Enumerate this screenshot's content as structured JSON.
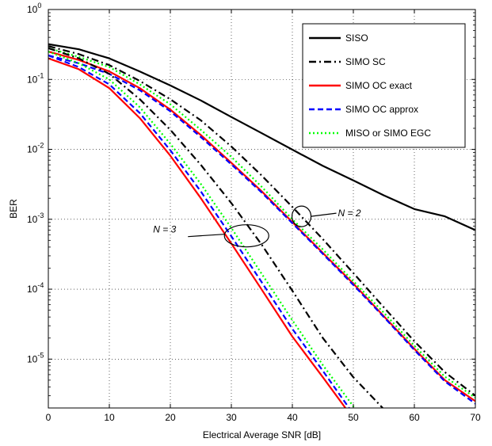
{
  "chart_data": {
    "type": "line",
    "xlabel": "Electrical Average SNR [dB]",
    "ylabel": "BER",
    "xlim": [
      0,
      70
    ],
    "ylim": [
      2e-06,
      1
    ],
    "yscale": "log",
    "grid": true,
    "legend_position": "top-right",
    "x_ticks": [
      "0",
      "10",
      "20",
      "30",
      "40",
      "50",
      "60",
      "70"
    ],
    "y_ticks": [
      {
        "base": "10",
        "exp": "0"
      },
      {
        "base": "10",
        "exp": "-1"
      },
      {
        "base": "10",
        "exp": "-2"
      },
      {
        "base": "10",
        "exp": "-3"
      },
      {
        "base": "10",
        "exp": "-4"
      },
      {
        "base": "10",
        "exp": "-5"
      }
    ],
    "legend": [
      {
        "label": "SISO",
        "color": "#000000",
        "style": "solid"
      },
      {
        "label": "SIMO SC",
        "color": "#000000",
        "style": "dashdot"
      },
      {
        "label": "SIMO OC exact",
        "color": "#ff0000",
        "style": "solid"
      },
      {
        "label": "SIMO OC approx",
        "color": "#0000ff",
        "style": "dashed"
      },
      {
        "label": "MISO or SIMO EGC",
        "color": "#00ff00",
        "style": "dotted"
      }
    ],
    "series": [
      {
        "name": "SISO",
        "color": "#000000",
        "style": "solid",
        "x": [
          0,
          5,
          10,
          15,
          20,
          25,
          30,
          35,
          40,
          45,
          50,
          55,
          60,
          65,
          70
        ],
        "y": [
          0.32,
          0.27,
          0.2,
          0.13,
          0.082,
          0.05,
          0.029,
          0.017,
          0.0099,
          0.0058,
          0.0036,
          0.0022,
          0.0014,
          0.0011,
          0.0007
        ]
      },
      {
        "name": "SIMO SC",
        "group": "N = 2",
        "color": "#000000",
        "style": "dashdot",
        "x": [
          0,
          5,
          10,
          15,
          20,
          25,
          30,
          35,
          40,
          45,
          50,
          55,
          60,
          65,
          70
        ],
        "y": [
          0.3,
          0.23,
          0.16,
          0.095,
          0.052,
          0.026,
          0.011,
          0.0042,
          0.0015,
          0.00052,
          0.00017,
          5.5e-05,
          1.8e-05,
          6.5e-06,
          3e-06
        ]
      },
      {
        "name": "SIMO OC exact",
        "group": "N = 2",
        "color": "#ff0000",
        "style": "solid",
        "x": [
          0,
          5,
          10,
          15,
          20,
          25,
          30,
          35,
          40,
          45,
          50,
          55,
          60,
          65,
          70
        ],
        "y": [
          0.25,
          0.19,
          0.13,
          0.075,
          0.037,
          0.016,
          0.0064,
          0.0025,
          0.00091,
          0.00033,
          0.00012,
          4.1e-05,
          1.4e-05,
          5e-06,
          2.5e-06
        ]
      },
      {
        "name": "SIMO OC approx",
        "group": "N = 2",
        "color": "#0000ff",
        "style": "dashed",
        "x": [
          0,
          5,
          10,
          15,
          20,
          25,
          30,
          35,
          40,
          45,
          50,
          55,
          60,
          65,
          70
        ],
        "y": [
          0.22,
          0.17,
          0.12,
          0.07,
          0.035,
          0.015,
          0.0061,
          0.0024,
          0.00088,
          0.00032,
          0.000115,
          4e-05,
          1.35e-05,
          4.8e-06,
          2.3e-06
        ]
      },
      {
        "name": "MISO or SIMO EGC",
        "group": "N = 2",
        "color": "#00ff00",
        "style": "dotted",
        "x": [
          0,
          5,
          10,
          15,
          20,
          25,
          30,
          35,
          40,
          45,
          50,
          55,
          60,
          65,
          70
        ],
        "y": [
          0.28,
          0.21,
          0.15,
          0.085,
          0.044,
          0.019,
          0.0078,
          0.0029,
          0.001,
          0.00037,
          0.00013,
          4.6e-05,
          1.55e-05,
          5.6e-06,
          2.8e-06
        ]
      },
      {
        "name": "SIMO SC",
        "group": "N = 3",
        "color": "#000000",
        "style": "dashdot",
        "x": [
          0,
          5,
          10,
          15,
          20,
          25,
          30,
          35,
          40,
          45,
          50,
          54.8
        ],
        "y": [
          0.28,
          0.2,
          0.12,
          0.052,
          0.019,
          0.006,
          0.0017,
          0.00043,
          9.5e-05,
          2e-05,
          5.5e-06,
          2e-06
        ]
      },
      {
        "name": "SIMO OC exact",
        "group": "N = 3",
        "color": "#ff0000",
        "style": "solid",
        "x": [
          0,
          5,
          10,
          15,
          20,
          25,
          30,
          35,
          40,
          45,
          48.7
        ],
        "y": [
          0.2,
          0.14,
          0.075,
          0.028,
          0.0081,
          0.002,
          0.00045,
          9.8e-05,
          2.1e-05,
          5.5e-06,
          2e-06
        ]
      },
      {
        "name": "SIMO OC approx",
        "group": "N = 3",
        "color": "#0000ff",
        "style": "dashed",
        "x": [
          0,
          5,
          10,
          15,
          20,
          25,
          30,
          35,
          40,
          45,
          49.3
        ],
        "y": [
          0.22,
          0.15,
          0.085,
          0.033,
          0.0097,
          0.0025,
          0.00057,
          0.000125,
          2.7e-05,
          6.8e-06,
          2e-06
        ]
      },
      {
        "name": "MISO or SIMO EGC",
        "group": "N = 3",
        "color": "#00ff00",
        "style": "dotted",
        "x": [
          0,
          5,
          10,
          15,
          20,
          25,
          30,
          35,
          40,
          45,
          50.2
        ],
        "y": [
          0.25,
          0.17,
          0.1,
          0.04,
          0.012,
          0.0032,
          0.00075,
          0.000165,
          3.6e-05,
          8.2e-06,
          2e-06
        ]
      }
    ],
    "annotations": [
      {
        "text": "N = 2",
        "x": 41.5,
        "y": 0.0011
      },
      {
        "text": "N = 3",
        "x": 32.5,
        "y": 0.00058
      }
    ]
  }
}
